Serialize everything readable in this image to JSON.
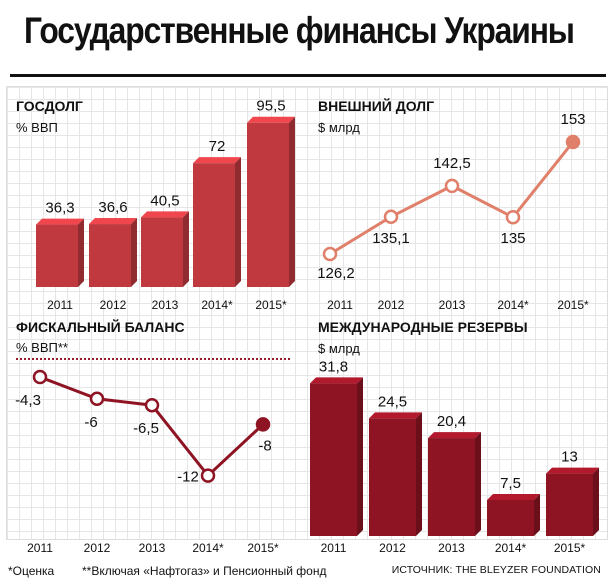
{
  "title": "Государственные финансы Украины",
  "footnotes": {
    "estimate": "*Оценка",
    "including": "**Включая «Нафтогаз» и Пенсионный фонд",
    "source": "ИСТОЧНИК: THE BLEYZER FOUNDATION"
  },
  "colors": {
    "bar_red": "#c0393f",
    "bar_dark": "#8e1424",
    "line_salmon": "#e0806a",
    "line_dark": "#8e1424",
    "dotted": "#9a1a2a"
  },
  "chart_data": [
    {
      "id": "gosdolg",
      "type": "bar",
      "title": "ГОСДОЛГ",
      "subtitle": "% ВВП",
      "categories": [
        "2011",
        "2012",
        "2013",
        "2014*",
        "2015*"
      ],
      "values": [
        36.3,
        36.6,
        40.5,
        72,
        95.5
      ],
      "value_labels": [
        "36,3",
        "36,6",
        "40,5",
        "72",
        "95,5"
      ]
    },
    {
      "id": "external_debt",
      "type": "line",
      "title": "ВНЕШНИЙ ДОЛГ",
      "subtitle": "$ млрд",
      "categories": [
        "2011",
        "2012",
        "2013",
        "2014*",
        "2015*"
      ],
      "values": [
        126.2,
        135.1,
        142.5,
        135,
        153
      ],
      "value_labels": [
        "126,2",
        "135,1",
        "142,5",
        "135",
        "153"
      ]
    },
    {
      "id": "fiscal_balance",
      "type": "line",
      "title": "ФИСКАЛЬНЫЙ БАЛАНС",
      "subtitle": "% ВВП**",
      "categories": [
        "2011",
        "2012",
        "2013",
        "2014*",
        "2015*"
      ],
      "values": [
        -4.3,
        -6,
        -6.5,
        -12,
        -8
      ],
      "value_labels": [
        "-4,3",
        "-6",
        "-6,5",
        "-12",
        "-8"
      ]
    },
    {
      "id": "reserves",
      "type": "bar",
      "title": "МЕЖДУНАРОДНЫЕ РЕЗЕРВЫ",
      "subtitle": "$ млрд",
      "categories": [
        "2011",
        "2012",
        "2013",
        "2014*",
        "2015*"
      ],
      "values": [
        31.8,
        24.5,
        20.4,
        7.5,
        13
      ],
      "value_labels": [
        "31,8",
        "24,5",
        "20,4",
        "7,5",
        "13"
      ]
    }
  ]
}
